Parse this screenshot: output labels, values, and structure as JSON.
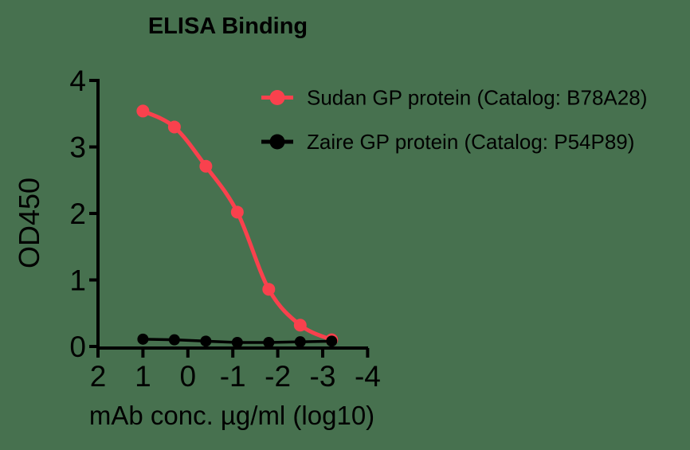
{
  "background_color": "#47714F",
  "chart_data": {
    "type": "line",
    "title": "ELISA Binding",
    "xlabel": "mAb conc. µg/ml (log10)",
    "ylabel": "OD450",
    "x_axis": {
      "ticks": [
        2,
        1,
        0,
        -1,
        -2,
        -3,
        -4
      ],
      "reversed": true,
      "range": [
        2,
        -4
      ]
    },
    "y_axis": {
      "ticks": [
        0,
        1,
        2,
        3,
        4
      ],
      "range": [
        0,
        4
      ]
    },
    "grid": false,
    "legend_position": "upper-right-inside",
    "series": [
      {
        "name": "Sudan GP protein (Catalog: B78A28)",
        "color": "#F9414D",
        "marker": "circle",
        "line_style": "smooth",
        "x": [
          1.0,
          0.3,
          -0.4,
          -1.1,
          -1.8,
          -2.5,
          -3.2
        ],
        "y": [
          3.54,
          3.3,
          2.71,
          2.02,
          0.86,
          0.32,
          0.1
        ]
      },
      {
        "name": "Zaire GP protein (Catalog: P54P89)",
        "color": "#000000",
        "marker": "circle",
        "line_style": "straight",
        "x": [
          1.0,
          0.3,
          -0.4,
          -1.1,
          -1.8,
          -2.5,
          -3.2
        ],
        "y": [
          0.11,
          0.1,
          0.08,
          0.06,
          0.06,
          0.07,
          0.08
        ]
      }
    ]
  }
}
